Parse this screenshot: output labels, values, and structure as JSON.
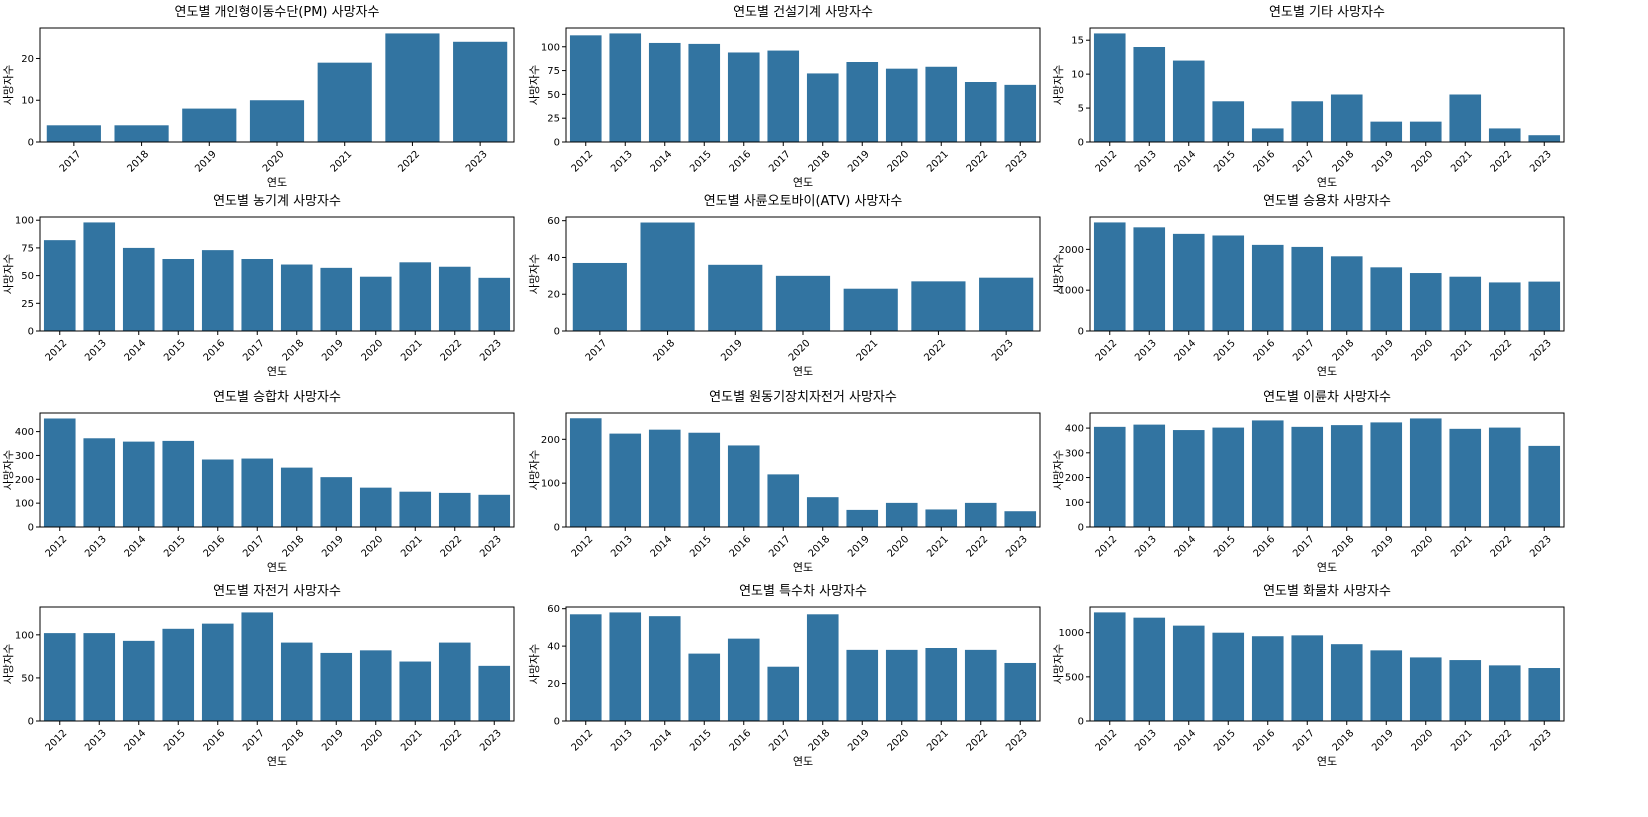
{
  "figure": {
    "chart_color": "#3274a1"
  },
  "chart_data": [
    {
      "type": "bar",
      "title": "연도별 개인형이동수단(PM) 사망자수",
      "xlabel": "연도",
      "ylabel": "사망자수",
      "categories": [
        "2017",
        "2018",
        "2019",
        "2020",
        "2021",
        "2022",
        "2023"
      ],
      "values": [
        4,
        4,
        8,
        10,
        19,
        26,
        24
      ],
      "ylim": [
        0,
        27.3
      ],
      "yticks": [
        0,
        10,
        20
      ],
      "grid": false
    },
    {
      "type": "bar",
      "title": "연도별 건설기계 사망자수",
      "xlabel": "연도",
      "ylabel": "사망자수",
      "categories": [
        "2012",
        "2013",
        "2014",
        "2015",
        "2016",
        "2017",
        "2018",
        "2019",
        "2020",
        "2021",
        "2022",
        "2023"
      ],
      "values": [
        112,
        114,
        104,
        103,
        94,
        96,
        72,
        84,
        77,
        79,
        63,
        60
      ],
      "ylim": [
        0,
        119.7
      ],
      "yticks": [
        0,
        25,
        50,
        75,
        100
      ],
      "grid": false
    },
    {
      "type": "bar",
      "title": "연도별 기타 사망자수",
      "xlabel": "연도",
      "ylabel": "사망자수",
      "categories": [
        "2012",
        "2013",
        "2014",
        "2015",
        "2016",
        "2017",
        "2018",
        "2019",
        "2020",
        "2021",
        "2022",
        "2023"
      ],
      "values": [
        16,
        14,
        12,
        6,
        2,
        6,
        7,
        3,
        3,
        7,
        2,
        1
      ],
      "ylim": [
        0,
        16.8
      ],
      "yticks": [
        0,
        5,
        10,
        15
      ],
      "grid": false
    },
    {
      "type": "bar",
      "title": "연도별 농기계 사망자수",
      "xlabel": "연도",
      "ylabel": "사망자수",
      "categories": [
        "2012",
        "2013",
        "2014",
        "2015",
        "2016",
        "2017",
        "2018",
        "2019",
        "2020",
        "2021",
        "2022",
        "2023"
      ],
      "values": [
        82,
        98,
        75,
        65,
        73,
        65,
        60,
        57,
        49,
        62,
        58,
        48
      ],
      "ylim": [
        0,
        102.9
      ],
      "yticks": [
        0,
        25,
        50,
        75,
        100
      ],
      "grid": false
    },
    {
      "type": "bar",
      "title": "연도별 사륜오토바이(ATV) 사망자수",
      "xlabel": "연도",
      "ylabel": "사망자수",
      "categories": [
        "2017",
        "2018",
        "2019",
        "2020",
        "2021",
        "2022",
        "2023"
      ],
      "values": [
        37,
        59,
        36,
        30,
        23,
        27,
        29
      ],
      "ylim": [
        0,
        62
      ],
      "yticks": [
        0,
        20,
        40,
        60
      ],
      "grid": false
    },
    {
      "type": "bar",
      "title": "연도별 승용차 사망자수",
      "xlabel": "연도",
      "ylabel": "사망자수",
      "categories": [
        "2012",
        "2013",
        "2014",
        "2015",
        "2016",
        "2017",
        "2018",
        "2019",
        "2020",
        "2021",
        "2022",
        "2023"
      ],
      "values": [
        2660,
        2540,
        2380,
        2340,
        2110,
        2060,
        1830,
        1560,
        1420,
        1330,
        1190,
        1210
      ],
      "ylim": [
        0,
        2793
      ],
      "yticks": [
        0,
        1000,
        2000
      ],
      "grid": false
    },
    {
      "type": "bar",
      "title": "연도별 승합차 사망자수",
      "xlabel": "연도",
      "ylabel": "사망자수",
      "categories": [
        "2012",
        "2013",
        "2014",
        "2015",
        "2016",
        "2017",
        "2018",
        "2019",
        "2020",
        "2021",
        "2022",
        "2023"
      ],
      "values": [
        455,
        372,
        358,
        361,
        283,
        287,
        249,
        209,
        165,
        148,
        143,
        135
      ],
      "ylim": [
        0,
        478
      ],
      "yticks": [
        0,
        100,
        200,
        300,
        400
      ],
      "grid": false
    },
    {
      "type": "bar",
      "title": "연도별 원동기장치자전거 사망자수",
      "xlabel": "연도",
      "ylabel": "사망자수",
      "categories": [
        "2012",
        "2013",
        "2014",
        "2015",
        "2016",
        "2017",
        "2018",
        "2019",
        "2020",
        "2021",
        "2022",
        "2023"
      ],
      "values": [
        248,
        213,
        222,
        215,
        186,
        120,
        68,
        39,
        55,
        40,
        55,
        36
      ],
      "ylim": [
        0,
        260
      ],
      "yticks": [
        0,
        100,
        200
      ],
      "grid": false
    },
    {
      "type": "bar",
      "title": "연도별 이륜차 사망자수",
      "xlabel": "연도",
      "ylabel": "사망자수",
      "categories": [
        "2012",
        "2013",
        "2014",
        "2015",
        "2016",
        "2017",
        "2018",
        "2019",
        "2020",
        "2021",
        "2022",
        "2023"
      ],
      "values": [
        405,
        414,
        392,
        402,
        431,
        405,
        412,
        423,
        439,
        397,
        402,
        328
      ],
      "ylim": [
        0,
        461
      ],
      "yticks": [
        0,
        100,
        200,
        300,
        400
      ],
      "grid": false
    },
    {
      "type": "bar",
      "title": "연도별 자전거 사망자수",
      "xlabel": "연도",
      "ylabel": "사망자수",
      "categories": [
        "2012",
        "2013",
        "2014",
        "2015",
        "2016",
        "2017",
        "2018",
        "2019",
        "2020",
        "2021",
        "2022",
        "2023"
      ],
      "values": [
        102,
        102,
        93,
        107,
        113,
        126,
        91,
        79,
        82,
        69,
        91,
        64
      ],
      "ylim": [
        0,
        132.3
      ],
      "yticks": [
        0,
        50,
        100
      ],
      "grid": false
    },
    {
      "type": "bar",
      "title": "연도별 특수차 사망자수",
      "xlabel": "연도",
      "ylabel": "사망자수",
      "categories": [
        "2012",
        "2013",
        "2014",
        "2015",
        "2016",
        "2017",
        "2018",
        "2019",
        "2020",
        "2021",
        "2022",
        "2023"
      ],
      "values": [
        57,
        58,
        56,
        36,
        44,
        29,
        57,
        38,
        38,
        39,
        38,
        31
      ],
      "ylim": [
        0,
        60.9
      ],
      "yticks": [
        0,
        20,
        40,
        60
      ],
      "grid": false
    },
    {
      "type": "bar",
      "title": "연도별 화물차 사망자수",
      "xlabel": "연도",
      "ylabel": "사망자수",
      "categories": [
        "2012",
        "2013",
        "2014",
        "2015",
        "2016",
        "2017",
        "2018",
        "2019",
        "2020",
        "2021",
        "2022",
        "2023"
      ],
      "values": [
        1230,
        1170,
        1080,
        1000,
        960,
        970,
        870,
        800,
        720,
        690,
        630,
        600
      ],
      "ylim": [
        0,
        1291
      ],
      "yticks": [
        0,
        500,
        1000
      ],
      "grid": false
    }
  ]
}
